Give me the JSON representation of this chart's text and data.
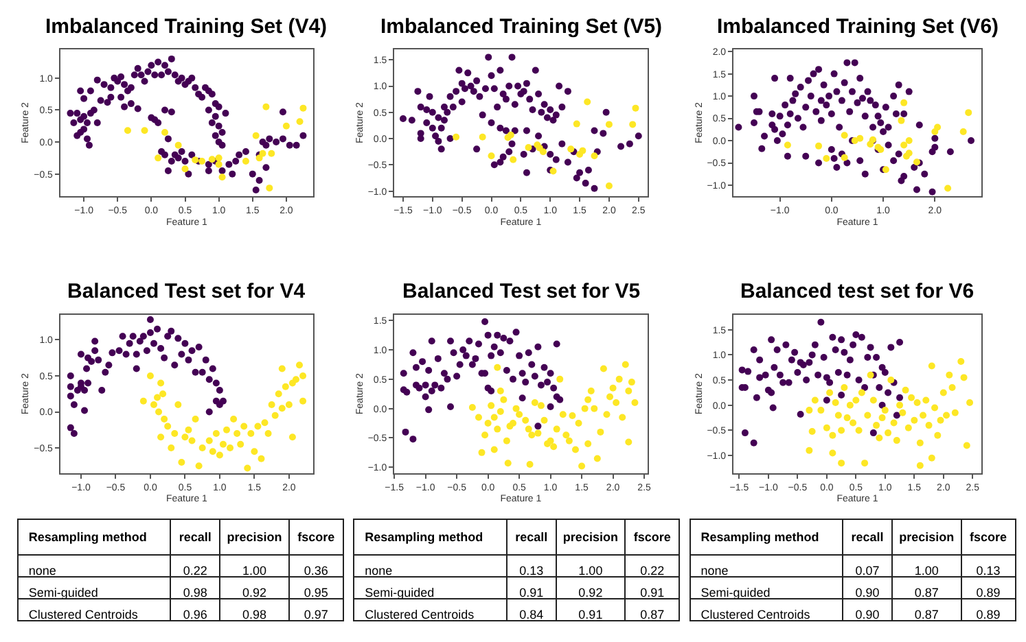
{
  "chart_data": [
    {
      "type": "scatter",
      "title": "Imbalanced Training Set (V4)",
      "xlabel": "Feature 1",
      "ylabel": "Feature 2",
      "marker": "circle",
      "xlim": [
        -1.35,
        2.4
      ],
      "ylim": [
        -0.85,
        1.45
      ],
      "xticks": [
        {
          "value": -1,
          "label": "−1.0"
        },
        {
          "value": -0.5,
          "label": "−0.5"
        },
        {
          "value": 0,
          "label": "0.0"
        },
        {
          "value": 0.5,
          "label": "0.5"
        },
        {
          "value": 1,
          "label": "1.0"
        },
        {
          "value": 1.5,
          "label": "1.5"
        },
        {
          "value": 2,
          "label": "2.0"
        }
      ],
      "yticks": [
        {
          "value": -0.5,
          "label": "−0.5"
        },
        {
          "value": 0,
          "label": "0.0"
        },
        {
          "value": 0.5,
          "label": "0.5"
        },
        {
          "value": 1,
          "label": "1.0"
        }
      ],
      "series": [
        {
          "color": "#440154",
          "x": [
            -1.2,
            -1.15,
            -1.1,
            -1.05,
            -1.0,
            -0.95,
            -0.9,
            -1.05,
            -1.0,
            -0.95,
            -0.92,
            -0.85,
            -0.8,
            -1.1,
            -1.0,
            -1.05,
            -0.9,
            -0.8,
            -0.75,
            -0.65,
            -0.7,
            -0.6,
            -0.55,
            -0.5,
            -0.45,
            -0.4,
            -0.35,
            -0.3,
            -0.25,
            -0.2,
            -0.15,
            -0.1,
            -0.05,
            0.0,
            0.05,
            0.1,
            0.15,
            0.2,
            0.25,
            0.3,
            0.35,
            0.4,
            0.45,
            0.5,
            0.55,
            0.6,
            0.65,
            0.7,
            0.75,
            0.8,
            0.85,
            0.9,
            0.95,
            1.0,
            0.85,
            0.9,
            0.95,
            1.0,
            1.05,
            1.1,
            0.95,
            1.0,
            1.05,
            -0.6,
            -0.45,
            -0.3,
            -0.2,
            -0.4,
            0.2,
            0.3,
            0.0,
            0.05,
            0.1,
            0.15,
            0.2,
            0.25,
            0.3,
            0.35,
            0.4,
            0.45,
            0.5,
            0.55,
            0.25,
            0.6,
            0.7,
            0.85,
            0.85,
            0.95,
            1.05,
            1.15,
            1.2,
            1.25,
            1.3,
            1.4,
            1.5,
            1.6,
            1.55,
            1.6,
            1.65,
            1.7,
            1.75,
            1.85,
            1.95,
            2.05,
            2.15,
            2.25,
            1.95,
            1.7
          ],
          "values": [
            0.45,
            0.3,
            0.45,
            0.35,
            0.4,
            0.3,
            0.45,
            0.15,
            0.2,
            0.05,
            -0.05,
            0.5,
            0.3,
            0.1,
            0.68,
            0.8,
            0.8,
            0.97,
            0.65,
            0.62,
            0.9,
            0.85,
            1.0,
            0.95,
            1.02,
            0.9,
            0.8,
            0.85,
            1.05,
            1.15,
            1.05,
            0.95,
            1.1,
            1.2,
            1.05,
            1.25,
            1.05,
            1.2,
            1.1,
            1.3,
            1.05,
            0.95,
            1.0,
            0.9,
            0.95,
            1.0,
            0.85,
            0.75,
            0.7,
            0.85,
            0.8,
            0.75,
            0.6,
            0.55,
            0.5,
            0.3,
            0.4,
            0.25,
            0.15,
            0.45,
            0.1,
            0.0,
            -0.05,
            0.7,
            0.7,
            0.6,
            0.52,
            0.55,
            0.5,
            0.47,
            0.38,
            0.35,
            0.3,
            -0.15,
            -0.2,
            0.05,
            -0.3,
            -0.2,
            -0.25,
            -0.15,
            -0.3,
            -0.5,
            -0.45,
            -0.2,
            -0.3,
            -0.35,
            -0.45,
            -0.3,
            -0.45,
            -0.35,
            -0.5,
            -0.3,
            -0.2,
            -0.15,
            -0.5,
            -0.6,
            -0.75,
            -0.2,
            0.0,
            -0.05,
            0.05,
            0.0,
            0.05,
            -0.05,
            -0.05,
            0.1,
            0.47,
            -0.4
          ]
        },
        {
          "color": "#fde725",
          "x": [
            -0.35,
            -0.1,
            0.2,
            0.4,
            0.1,
            0.5,
            0.65,
            0.75,
            0.9,
            1.0,
            1.0,
            1.05,
            1.4,
            1.6,
            1.65,
            1.55,
            1.78,
            1.7,
            2.0,
            2.2,
            2.25,
            1.75
          ],
          "values": [
            0.18,
            0.18,
            0.15,
            -0.05,
            -0.25,
            -0.42,
            -0.28,
            -0.3,
            -0.27,
            -0.35,
            -0.25,
            -0.55,
            -0.3,
            -0.25,
            -0.18,
            0.1,
            -0.18,
            0.55,
            0.25,
            0.32,
            0.53,
            -0.72
          ]
        }
      ]
    },
    {
      "type": "scatter",
      "title": "Imbalanced Training Set (V5)",
      "xlabel": "Feature 1",
      "ylabel": "Feature 2",
      "marker": "circle",
      "xlim": [
        -1.65,
        2.65
      ],
      "ylim": [
        -1.1,
        1.7
      ],
      "xticks": [
        {
          "value": -1.5,
          "label": "−1.5"
        },
        {
          "value": -1,
          "label": "−1.0"
        },
        {
          "value": -0.5,
          "label": "−0.5"
        },
        {
          "value": 0,
          "label": "0.0"
        },
        {
          "value": 0.5,
          "label": "0.5"
        },
        {
          "value": 1,
          "label": "1.0"
        },
        {
          "value": 1.5,
          "label": "1.5"
        },
        {
          "value": 2,
          "label": "2.0"
        },
        {
          "value": 2.5,
          "label": "2.5"
        }
      ],
      "yticks": [
        {
          "value": -1,
          "label": "−1.0"
        },
        {
          "value": -0.5,
          "label": "−0.5"
        },
        {
          "value": 0,
          "label": "0.0"
        },
        {
          "value": 0.5,
          "label": "0.5"
        },
        {
          "value": 1,
          "label": "1.0"
        },
        {
          "value": 1.5,
          "label": "1.5"
        }
      ],
      "series": [
        {
          "color": "#440154",
          "x": [
            -1.5,
            -1.35,
            -1.25,
            -1.2,
            -1.2,
            -1.2,
            -1.1,
            -1.1,
            -1.05,
            -1.0,
            -1.0,
            -0.95,
            -0.9,
            -0.9,
            -0.85,
            -0.85,
            -0.8,
            -0.8,
            -0.75,
            -0.7,
            -0.7,
            -0.65,
            -0.6,
            -0.55,
            -0.5,
            -0.5,
            -0.45,
            -0.4,
            -0.35,
            -0.3,
            -0.25,
            -0.2,
            -0.15,
            -0.1,
            -0.05,
            0.0,
            0.05,
            0.1,
            0.15,
            0.2,
            0.25,
            0.3,
            0.35,
            0.4,
            0.45,
            0.5,
            0.55,
            0.6,
            0.65,
            0.7,
            0.75,
            0.8,
            0.85,
            0.9,
            0.95,
            1.0,
            1.05,
            1.1,
            1.15,
            1.2,
            1.3,
            0.6,
            0.4,
            0.25,
            0.35,
            0.3,
            0.2,
            0.05,
            0.15,
            0.55,
            0.6,
            0.7,
            0.8,
            0.9,
            1.0,
            1.1,
            1.0,
            1.2,
            1.3,
            1.4,
            1.45,
            1.5,
            1.6,
            1.65,
            1.75,
            1.8,
            1.75,
            1.9,
            2.2,
            2.35,
            2.5,
            1.95,
            -0.25,
            0.0,
            0.15
          ],
          "values": [
            0.38,
            0.35,
            0.9,
            0.6,
            0.1,
            0.0,
            0.55,
            0.3,
            0.8,
            0.5,
            0.2,
            0.05,
            0.4,
            -0.05,
            0.2,
            -0.2,
            0.6,
            0.35,
            0.5,
            0.8,
            0.0,
            0.6,
            0.9,
            1.3,
            1.05,
            0.7,
            0.95,
            1.25,
            1.0,
            0.9,
            1.1,
            0.8,
            0.45,
            0.95,
            1.55,
            1.2,
            0.95,
            0.6,
            1.3,
            0.85,
            0.75,
            1.0,
            1.55,
            0.65,
            1.0,
            0.85,
            0.9,
            1.05,
            0.75,
            0.55,
            1.3,
            0.85,
            0.5,
            0.65,
            0.4,
            0.55,
            0.35,
            0.45,
            1.0,
            0.6,
            0.9,
            0.15,
            0.15,
            0.15,
            -0.1,
            -0.25,
            -0.35,
            -0.5,
            -0.45,
            -0.3,
            -0.65,
            -0.2,
            0.05,
            -0.15,
            -0.3,
            -0.4,
            -0.6,
            -0.1,
            -0.45,
            -0.25,
            -0.75,
            -0.65,
            -0.85,
            -0.6,
            -0.95,
            -0.25,
            0.15,
            0.1,
            -0.15,
            -0.1,
            0.05,
            0.5,
            -0.2,
            0.3,
            0.2
          ]
        },
        {
          "color": "#fde725",
          "x": [
            -0.6,
            -0.15,
            0.0,
            0.28,
            0.33,
            0.37,
            0.63,
            0.78,
            0.82,
            0.88,
            1.05,
            1.35,
            1.5,
            1.55,
            1.63,
            1.45,
            1.75,
            2.0,
            2.4,
            2.45,
            2.0
          ],
          "values": [
            0.03,
            0.03,
            -0.33,
            0.02,
            0.07,
            -0.4,
            -0.17,
            -0.12,
            -0.18,
            -0.25,
            -0.62,
            -0.2,
            -0.3,
            -0.23,
            0.7,
            0.28,
            -0.33,
            0.27,
            0.27,
            0.58,
            -0.9
          ]
        }
      ]
    },
    {
      "type": "scatter",
      "title": "Imbalanced Training Set (V6)",
      "xlabel": "Feature 1",
      "ylabel": "Feature 2",
      "marker": "circle",
      "xlim": [
        -1.9,
        2.9
      ],
      "ylim": [
        -1.25,
        2.05
      ],
      "xticks": [
        {
          "value": -1,
          "label": "−1.0"
        },
        {
          "value": 0,
          "label": "0.0"
        },
        {
          "value": 1,
          "label": "1.0"
        },
        {
          "value": 2,
          "label": "2.0"
        }
      ],
      "yticks": [
        {
          "value": -1,
          "label": "−1.0"
        },
        {
          "value": -0.5,
          "label": "−0.5"
        },
        {
          "value": 0,
          "label": "0.0"
        },
        {
          "value": 0.5,
          "label": "0.5"
        },
        {
          "value": 1,
          "label": "1.0"
        },
        {
          "value": 1.5,
          "label": "1.5"
        },
        {
          "value": 2,
          "label": "2.0"
        }
      ],
      "series": [
        {
          "color": "#440154",
          "x": [
            -1.8,
            -1.5,
            -1.5,
            -1.45,
            -1.4,
            -1.35,
            -1.3,
            -1.15,
            -1.15,
            -1.1,
            -1.1,
            -1.05,
            -1.0,
            -0.95,
            -0.9,
            -0.85,
            -0.85,
            -0.8,
            -0.8,
            -0.75,
            -0.7,
            -0.65,
            -0.6,
            -0.55,
            -0.5,
            -0.5,
            -0.45,
            -0.4,
            -0.35,
            -0.3,
            -0.25,
            -0.2,
            -0.2,
            -0.15,
            -0.1,
            -0.05,
            0.0,
            0.05,
            0.1,
            0.15,
            0.2,
            0.25,
            0.3,
            0.35,
            0.4,
            0.45,
            0.5,
            0.55,
            0.6,
            0.65,
            0.7,
            0.75,
            0.8,
            0.85,
            0.9,
            0.95,
            1.0,
            1.05,
            1.1,
            1.2,
            1.25,
            1.3,
            1.4,
            1.5,
            0.0,
            0.05,
            0.1,
            0.2,
            0.3,
            0.4,
            0.55,
            0.65,
            0.8,
            0.9,
            1.0,
            1.1,
            1.2,
            1.3,
            1.4,
            1.35,
            1.6,
            1.65,
            1.7,
            1.8,
            1.7,
            1.95,
            1.95,
            2.0,
            2.3,
            2.7,
            2.0,
            -0.25
          ],
          "values": [
            0.3,
            0.4,
            1.0,
            0.65,
            0.65,
            -0.18,
            0.1,
            0.6,
            0.35,
            1.4,
            0.25,
            0.0,
            0.55,
            0.15,
            0.8,
            0.35,
            -0.35,
            1.4,
            0.6,
            0.9,
            1.05,
            0.5,
            1.2,
            0.3,
            0.75,
            -0.35,
            1.35,
            1.0,
            1.5,
            0.65,
            1.6,
            0.9,
            0.45,
            1.25,
            0.8,
            1.0,
            0.6,
            1.5,
            1.1,
            0.3,
            0.9,
            1.3,
            1.75,
            0.65,
            1.1,
            1.75,
            0.85,
            1.4,
            0.95,
            0.55,
            1.1,
            0.9,
            0.3,
            0.8,
            0.55,
            0.4,
            0.2,
            0.75,
            0.3,
            1.0,
            0.6,
            1.25,
            0.6,
            1.1,
            -0.2,
            -0.4,
            -0.6,
            -0.3,
            -0.5,
            0.0,
            -0.45,
            -0.75,
            0.0,
            -0.2,
            -0.65,
            -0.1,
            -0.45,
            -0.3,
            -0.8,
            -0.9,
            -0.6,
            -1.1,
            -0.5,
            -0.75,
            0.35,
            -0.25,
            -1.15,
            -0.15,
            -0.25,
            0.0,
            0.05,
            -0.5
          ]
        },
        {
          "color": "#fde725",
          "x": [
            -0.85,
            -0.25,
            -0.1,
            0.25,
            0.45,
            0.55,
            0.75,
            0.8,
            0.9,
            0.95,
            1.05,
            1.4,
            1.35,
            1.4,
            1.45,
            1.5,
            1.65,
            1.5,
            2.05,
            2.0,
            2.55,
            2.65,
            2.25,
            0.25
          ],
          "values": [
            -0.1,
            -0.12,
            -0.4,
            0.12,
            0.0,
            0.05,
            -0.08,
            0.02,
            -0.15,
            -0.2,
            -0.65,
            0.85,
            0.45,
            -0.1,
            -0.35,
            -0.28,
            -0.48,
            0.0,
            0.3,
            0.2,
            0.2,
            0.63,
            -1.07,
            -0.38
          ]
        }
      ]
    },
    {
      "type": "scatter",
      "title": "Balanced Test set for V4",
      "xlabel": "Feature 1",
      "ylabel": "Feature 2",
      "marker": "circle",
      "xlim": [
        -1.3,
        2.35
      ],
      "ylim": [
        -0.85,
        1.35
      ],
      "xticks": [
        {
          "value": -1,
          "label": "−1.0"
        },
        {
          "value": -0.5,
          "label": "−0.5"
        },
        {
          "value": 0,
          "label": "0.0"
        },
        {
          "value": 0.5,
          "label": "0.5"
        },
        {
          "value": 1,
          "label": "1.0"
        },
        {
          "value": 1.5,
          "label": "1.5"
        },
        {
          "value": 2,
          "label": "2.0"
        }
      ],
      "yticks": [
        {
          "value": -0.5,
          "label": "−0.5"
        },
        {
          "value": 0,
          "label": "0.0"
        },
        {
          "value": 0.5,
          "label": "0.5"
        },
        {
          "value": 1,
          "label": "1.0"
        }
      ],
      "series": [
        {
          "color": "#440154",
          "x": [
            -1.15,
            -1.15,
            -1.15,
            -1.1,
            -1.05,
            -1.0,
            -1.0,
            -1.0,
            -0.95,
            -0.95,
            -0.92,
            -0.9,
            -0.9,
            -0.85,
            -0.8,
            -0.8,
            -0.75,
            -0.7,
            -0.65,
            -0.6,
            -0.55,
            -0.45,
            -0.4,
            -0.35,
            -0.3,
            -0.25,
            -0.2,
            -0.15,
            -0.1,
            -0.05,
            0.0,
            0.0,
            0.05,
            0.1,
            0.15,
            0.2,
            0.25,
            0.3,
            0.35,
            0.4,
            0.45,
            0.5,
            0.55,
            0.6,
            0.65,
            0.7,
            0.75,
            0.8,
            0.85,
            0.9,
            0.95,
            1.0,
            0.95,
            1.0,
            1.05,
            0.85,
            -0.2,
            -1.15,
            -1.1
          ],
          "values": [
            0.5,
            0.35,
            0.22,
            0.1,
            0.3,
            0.8,
            0.4,
            0.35,
            0.3,
            0.02,
            0.6,
            0.75,
            0.4,
            0.7,
            0.98,
            0.85,
            0.72,
            0.3,
            0.55,
            0.65,
            0.82,
            0.85,
            1.05,
            0.8,
            0.95,
            1.05,
            0.8,
            0.98,
            1.05,
            0.85,
            1.28,
            1.1,
            0.95,
            1.15,
            0.88,
            0.75,
            1.05,
            1.12,
            0.65,
            1.02,
            0.8,
            0.95,
            0.72,
            0.85,
            0.55,
            0.9,
            0.55,
            0.72,
            0.45,
            0.6,
            0.4,
            0.3,
            0.15,
            0.1,
            0.15,
            0.0,
            0.6,
            -0.22,
            -0.3
          ]
        },
        {
          "color": "#fde725",
          "x": [
            -0.1,
            0.0,
            0.05,
            0.1,
            0.12,
            0.15,
            0.15,
            0.18,
            0.2,
            0.25,
            0.3,
            0.35,
            0.4,
            0.45,
            0.5,
            0.55,
            0.6,
            0.65,
            0.7,
            0.75,
            0.85,
            0.9,
            0.95,
            1.0,
            1.05,
            1.1,
            1.15,
            1.25,
            1.3,
            1.35,
            1.4,
            1.45,
            1.5,
            1.55,
            1.6,
            1.65,
            1.7,
            1.75,
            1.8,
            1.85,
            1.9,
            1.95,
            2.0,
            2.05,
            2.1,
            2.15,
            2.2,
            1.9,
            2.2,
            2.05,
            1.2
          ],
          "values": [
            0.15,
            0.5,
            0.1,
            0.2,
            0.0,
            0.4,
            -0.35,
            0.25,
            -0.1,
            -0.2,
            -0.5,
            -0.3,
            0.1,
            -0.7,
            -0.35,
            -0.25,
            -0.4,
            -0.1,
            -0.75,
            -0.5,
            -0.4,
            -0.55,
            -0.3,
            -0.6,
            -0.45,
            -0.25,
            -0.5,
            -0.3,
            -0.45,
            -0.2,
            -0.78,
            -0.3,
            -0.55,
            -0.2,
            -0.65,
            -0.15,
            -0.3,
            0.1,
            -0.05,
            0.25,
            0.05,
            0.35,
            0.1,
            0.4,
            0.45,
            0.65,
            0.5,
            0.6,
            0.15,
            -0.35,
            -0.1
          ]
        }
      ]
    },
    {
      "type": "scatter",
      "title": "Balanced Test set for V5",
      "xlabel": "Feature 1",
      "ylabel": "Feature 2",
      "marker": "circle",
      "xlim": [
        -1.5,
        2.55
      ],
      "ylim": [
        -1.1,
        1.6
      ],
      "xticks": [
        {
          "value": -1.5,
          "label": "−1.5"
        },
        {
          "value": -1,
          "label": "−1.0"
        },
        {
          "value": -0.5,
          "label": "−0.5"
        },
        {
          "value": 0,
          "label": "0.0"
        },
        {
          "value": 0.5,
          "label": "0.5"
        },
        {
          "value": 1,
          "label": "1.0"
        },
        {
          "value": 1.5,
          "label": "1.5"
        },
        {
          "value": 2,
          "label": "2.0"
        },
        {
          "value": 2.5,
          "label": "2.5"
        }
      ],
      "yticks": [
        {
          "value": -1,
          "label": "−1.0"
        },
        {
          "value": -0.5,
          "label": "−0.5"
        },
        {
          "value": 0,
          "label": "0.0"
        },
        {
          "value": 0.5,
          "label": "0.5"
        },
        {
          "value": 1,
          "label": "1.0"
        },
        {
          "value": 1.5,
          "label": "1.5"
        }
      ],
      "series": [
        {
          "color": "#440154",
          "x": [
            -1.35,
            -1.35,
            -1.3,
            -1.32,
            -1.2,
            -1.2,
            -1.15,
            -1.15,
            -1.1,
            -1.05,
            -1.0,
            -1.0,
            -0.95,
            -0.95,
            -0.9,
            -0.9,
            -0.85,
            -0.8,
            -0.75,
            -0.7,
            -0.65,
            -0.6,
            -0.6,
            -0.55,
            -0.5,
            -0.45,
            -0.4,
            -0.35,
            -0.3,
            -0.25,
            -0.2,
            -0.15,
            -0.1,
            -0.05,
            0.0,
            0.05,
            0.1,
            0.15,
            0.2,
            0.25,
            0.3,
            0.35,
            0.4,
            0.45,
            0.5,
            0.55,
            0.6,
            0.65,
            0.7,
            0.75,
            0.8,
            0.85,
            0.9,
            0.95,
            1.0,
            1.05,
            1.1,
            1.1,
            1.15,
            1.0,
            0.8,
            0.55,
            0.0,
            0.05,
            -0.05
          ],
          "values": [
            0.6,
            0.32,
            0.28,
            -0.4,
            -0.52,
            0.95,
            0.7,
            0.4,
            0.35,
            0.8,
            0.4,
            0.2,
            0.65,
            -0.02,
            1.15,
            0.3,
            0.4,
            0.85,
            0.35,
            0.6,
            0.5,
            1.15,
            0.03,
            0.95,
            0.55,
            0.75,
            1.0,
            0.9,
            1.15,
            0.75,
            0.85,
            1.1,
            0.6,
            1.48,
            1.25,
            0.9,
            1.05,
            1.25,
            0.95,
            1.2,
            0.65,
            1.15,
            0.5,
            1.3,
            0.9,
            0.6,
            0.45,
            0.95,
            0.75,
            0.55,
            1.05,
            0.4,
            0.7,
            0.45,
            0.6,
            0.35,
            1.1,
            0.2,
            0.15,
            0.03,
            -0.3,
            0.18,
            0.35,
            0.3,
            0.6
          ]
        },
        {
          "color": "#fde725",
          "x": [
            -0.25,
            -0.15,
            -0.1,
            -0.05,
            0.0,
            0.05,
            0.1,
            0.1,
            0.15,
            0.15,
            0.2,
            0.2,
            0.25,
            0.3,
            0.32,
            0.35,
            0.4,
            0.45,
            0.5,
            0.6,
            0.65,
            0.67,
            0.7,
            0.75,
            0.8,
            0.85,
            0.9,
            0.95,
            1.0,
            1.05,
            1.1,
            1.15,
            1.2,
            1.25,
            1.3,
            1.35,
            1.4,
            1.45,
            1.5,
            1.55,
            1.6,
            1.65,
            1.7,
            1.75,
            1.8,
            1.85,
            1.9,
            1.95,
            2.0,
            2.05,
            2.1,
            2.15,
            2.2,
            2.25,
            2.3,
            2.35,
            2.25,
            1.6
          ],
          "values": [
            0.02,
            -0.15,
            -0.75,
            -0.45,
            -0.25,
            0.05,
            -0.15,
            -0.7,
            0.7,
            -0.35,
            0.3,
            -0.05,
            0.15,
            -0.55,
            -0.93,
            -0.3,
            -0.25,
            0.0,
            -0.1,
            -0.2,
            -0.35,
            -0.95,
            -0.45,
            0.1,
            -0.42,
            0.05,
            -0.2,
            -0.6,
            -0.55,
            -0.65,
            -0.35,
            0.5,
            -0.1,
            -0.45,
            -0.55,
            -0.12,
            -0.7,
            -0.25,
            -0.98,
            0.0,
            -0.6,
            0.3,
            0.0,
            -0.85,
            -0.4,
            0.68,
            -0.1,
            0.2,
            0.35,
            0.1,
            0.5,
            -0.15,
            0.75,
            0.3,
            0.45,
            0.1,
            -0.57,
            0.15
          ]
        }
      ]
    },
    {
      "type": "scatter",
      "title": "Balanced test set for V6",
      "xlabel": "Feature 1",
      "ylabel": "Feature 2",
      "marker": "circle",
      "xlim": [
        -1.6,
        2.65
      ],
      "ylim": [
        -1.35,
        1.8
      ],
      "xticks": [
        {
          "value": -1.5,
          "label": "−1.5"
        },
        {
          "value": -1,
          "label": "−1.0"
        },
        {
          "value": -0.5,
          "label": "−0.5"
        },
        {
          "value": 0,
          "label": "0.0"
        },
        {
          "value": 0.5,
          "label": "0.5"
        },
        {
          "value": 1,
          "label": "1.0"
        },
        {
          "value": 1.5,
          "label": "1.5"
        },
        {
          "value": 2,
          "label": "2.0"
        },
        {
          "value": 2.5,
          "label": "2.5"
        }
      ],
      "yticks": [
        {
          "value": -1,
          "label": "−1.0"
        },
        {
          "value": -0.5,
          "label": "−0.5"
        },
        {
          "value": 0,
          "label": "0.0"
        },
        {
          "value": 0.5,
          "label": "0.5"
        },
        {
          "value": 1,
          "label": "1.0"
        },
        {
          "value": 1.5,
          "label": "1.5"
        }
      ],
      "series": [
        {
          "color": "#440154",
          "x": [
            -1.45,
            -1.45,
            -1.4,
            -1.4,
            -1.35,
            -1.25,
            -1.25,
            -1.2,
            -1.15,
            -1.15,
            -1.05,
            -1.0,
            -0.95,
            -0.95,
            -0.92,
            -0.9,
            -0.85,
            -0.8,
            -0.75,
            -0.7,
            -0.65,
            -0.6,
            -0.55,
            -0.5,
            -0.45,
            -0.45,
            -0.4,
            -0.35,
            -0.3,
            -0.25,
            -0.2,
            -0.15,
            -0.1,
            -0.05,
            0.0,
            0.05,
            0.1,
            0.15,
            0.2,
            0.25,
            0.3,
            0.35,
            0.4,
            0.45,
            0.5,
            0.55,
            0.6,
            0.65,
            0.7,
            0.75,
            0.8,
            0.85,
            0.9,
            0.95,
            1.0,
            1.05,
            1.1,
            1.15,
            1.25,
            1.25,
            1.2,
            0.8,
            0.25,
            0.0,
            0.95
          ],
          "values": [
            0.7,
            0.35,
            0.35,
            -0.55,
            0.67,
            1.1,
            -0.75,
            0.15,
            0.55,
            0.9,
            0.6,
            0.3,
            1.3,
            0.25,
            -0.05,
            0.75,
            1.1,
            0.6,
            0.45,
            1.2,
            0.45,
            0.9,
            1.05,
            0.65,
            -0.18,
            0.85,
            0.8,
            0.5,
            0.85,
            1.0,
            1.2,
            0.6,
            1.65,
            0.95,
            0.55,
            0.45,
            1.35,
            1.1,
            0.65,
            1.3,
            1.05,
            0.6,
            0.9,
            1.2,
            1.4,
            0.5,
            1.35,
            0.35,
            0.95,
            1.15,
            0.6,
            0.95,
            0.35,
            0.75,
            0.65,
            0.25,
            1.15,
            0.45,
            1.25,
            0.15,
            -0.2,
            -0.55,
            0.2,
            0.1,
            0.0
          ]
        },
        {
          "color": "#fde725",
          "x": [
            -0.3,
            -0.3,
            -0.25,
            -0.2,
            -0.1,
            0.0,
            0.05,
            0.1,
            0.1,
            0.15,
            0.2,
            0.25,
            0.25,
            0.3,
            0.35,
            0.4,
            0.45,
            0.5,
            0.55,
            0.6,
            0.65,
            0.7,
            0.75,
            0.8,
            0.85,
            0.9,
            0.95,
            1.0,
            1.05,
            1.1,
            1.15,
            1.2,
            1.25,
            1.3,
            1.35,
            1.4,
            1.45,
            1.5,
            1.55,
            1.6,
            1.65,
            1.7,
            1.75,
            1.8,
            1.85,
            1.9,
            1.95,
            2.0,
            2.05,
            2.1,
            2.15,
            2.2,
            2.3,
            2.35,
            2.4,
            2.45,
            1.8,
            1.6
          ],
          "values": [
            -0.1,
            -0.9,
            -0.52,
            0.1,
            -0.1,
            -0.45,
            0.25,
            -0.6,
            -0.95,
            0.05,
            -0.2,
            -0.5,
            -1.15,
            0.35,
            -0.25,
            0.0,
            -0.35,
            0.1,
            -0.5,
            0.25,
            -1.15,
            -0.2,
            0.6,
            0.1,
            -0.4,
            -0.65,
            -0.25,
            -0.1,
            -0.55,
            0.5,
            -0.35,
            -0.7,
            0.0,
            -0.15,
            0.3,
            -0.45,
            0.15,
            -0.3,
            0.05,
            -0.75,
            -0.2,
            0.1,
            -0.4,
            0.78,
            -0.05,
            -0.6,
            -0.3,
            0.25,
            -0.2,
            0.6,
            0.35,
            -0.15,
            0.87,
            0.55,
            -0.8,
            0.05,
            -1.05,
            -1.2
          ]
        }
      ]
    },
    {
      "type": "other",
      "categories": [
        "Resampling method",
        "recall",
        "precision",
        "fscore"
      ],
      "y_categories": [
        "none",
        "Semi-guided",
        "Clustered Centroids"
      ],
      "data_labels": true,
      "cell_labels": [
        [
          "0.22",
          "1.00",
          "0.36"
        ],
        [
          "0.98",
          "0.92",
          "0.95"
        ],
        [
          "0.96",
          "0.98",
          "0.97"
        ]
      ]
    },
    {
      "type": "other",
      "categories": [
        "Resampling method",
        "recall",
        "precision",
        "fscore"
      ],
      "y_categories": [
        "none",
        "Semi-guided",
        "Clustered Centroids"
      ],
      "data_labels": true,
      "cell_labels": [
        [
          "0.13",
          "1.00",
          "0.22"
        ],
        [
          "0.91",
          "0.92",
          "0.91"
        ],
        [
          "0.84",
          "0.91",
          "0.87"
        ]
      ]
    },
    {
      "type": "other",
      "categories": [
        "Resampling method",
        "recall",
        "precision",
        "fscore"
      ],
      "y_categories": [
        "none",
        "Semi-guided",
        "Clustered Centroids"
      ],
      "data_labels": true,
      "cell_labels": [
        [
          "0.07",
          "1.00",
          "0.13"
        ],
        [
          "0.90",
          "0.87",
          "0.89"
        ],
        [
          "0.90",
          "0.87",
          "0.89"
        ]
      ]
    }
  ]
}
